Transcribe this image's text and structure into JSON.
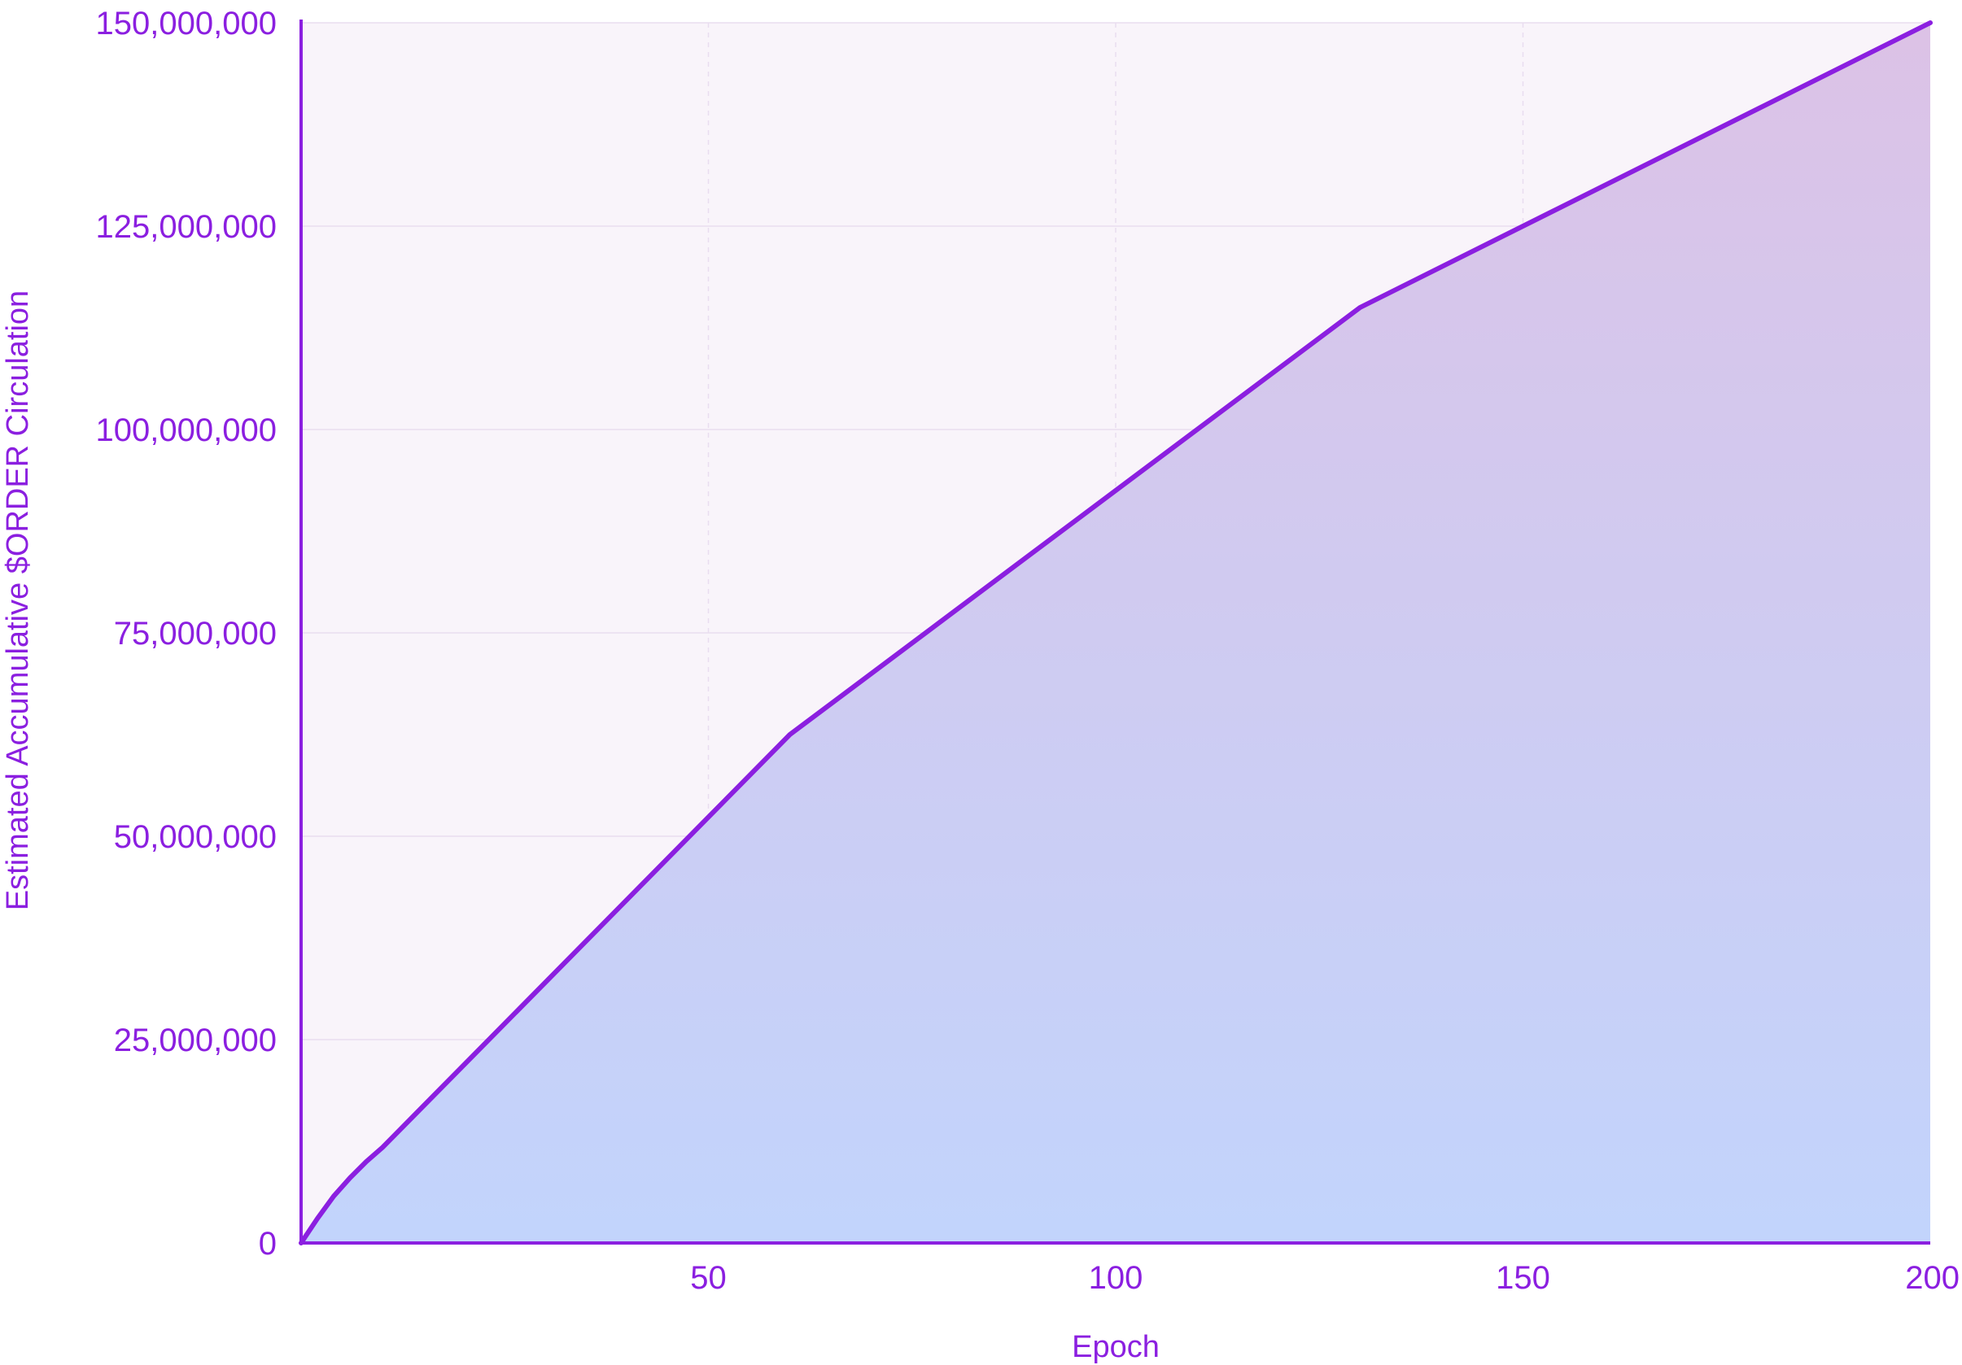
{
  "chart_data": {
    "type": "area",
    "title": "",
    "xlabel": "Epoch",
    "ylabel": "Estimated Accumulative $ORDER Circulation",
    "xlim": [
      0,
      200
    ],
    "ylim": [
      0,
      150000000
    ],
    "x_ticks": [
      50,
      100,
      150,
      200
    ],
    "x_tick_labels": [
      "50",
      "100",
      "150",
      "200"
    ],
    "y_ticks": [
      0,
      25000000,
      50000000,
      75000000,
      100000000,
      125000000,
      150000000
    ],
    "y_tick_labels": [
      "0",
      "25,000,000",
      "50,000,000",
      "75,000,000",
      "100,000,000",
      "125,000,000",
      "150,000,000"
    ],
    "grid": true,
    "legend": "none",
    "series": [
      {
        "x": [
          0,
          2,
          4,
          6,
          8,
          10,
          60,
          130,
          200
        ],
        "y": [
          0,
          3000000,
          5750000,
          8000000,
          10000000,
          11750000,
          62500000,
          115000000,
          150000000
        ]
      }
    ],
    "colors": {
      "line": "#8B1FE0",
      "axis": "#8B1FE0",
      "text": "#8B1FE0",
      "plot_background": "#F9F4FA",
      "fill_top": "#DCC2E6",
      "fill_bottom": "#C2D4FC",
      "grid": "#E9DDEF"
    }
  }
}
